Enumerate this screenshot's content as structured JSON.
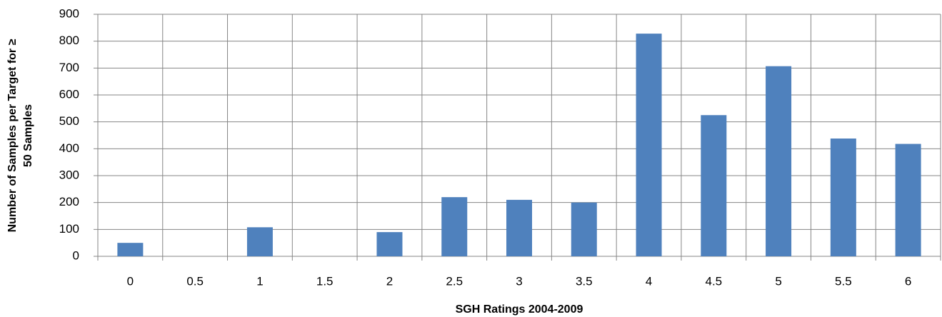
{
  "chart_data": {
    "type": "bar",
    "x_label": "SGH Ratings 2004-2009",
    "y_label": [
      "Number  of  Samples per Target for ≥",
      "50 Samples"
    ],
    "categories": [
      "0",
      "0.5",
      "1",
      "1.5",
      "2",
      "2.5",
      "3",
      "3.5",
      "4",
      "4.5",
      "5",
      "5.5",
      "6"
    ],
    "values": [
      50,
      0,
      108,
      0,
      90,
      220,
      210,
      200,
      828,
      525,
      707,
      438,
      418
    ],
    "color": "#4f81bd",
    "ylim": [
      0,
      900
    ],
    "yticks": [
      0,
      100,
      200,
      300,
      400,
      500,
      600,
      700,
      800,
      900
    ],
    "grid": true
  }
}
